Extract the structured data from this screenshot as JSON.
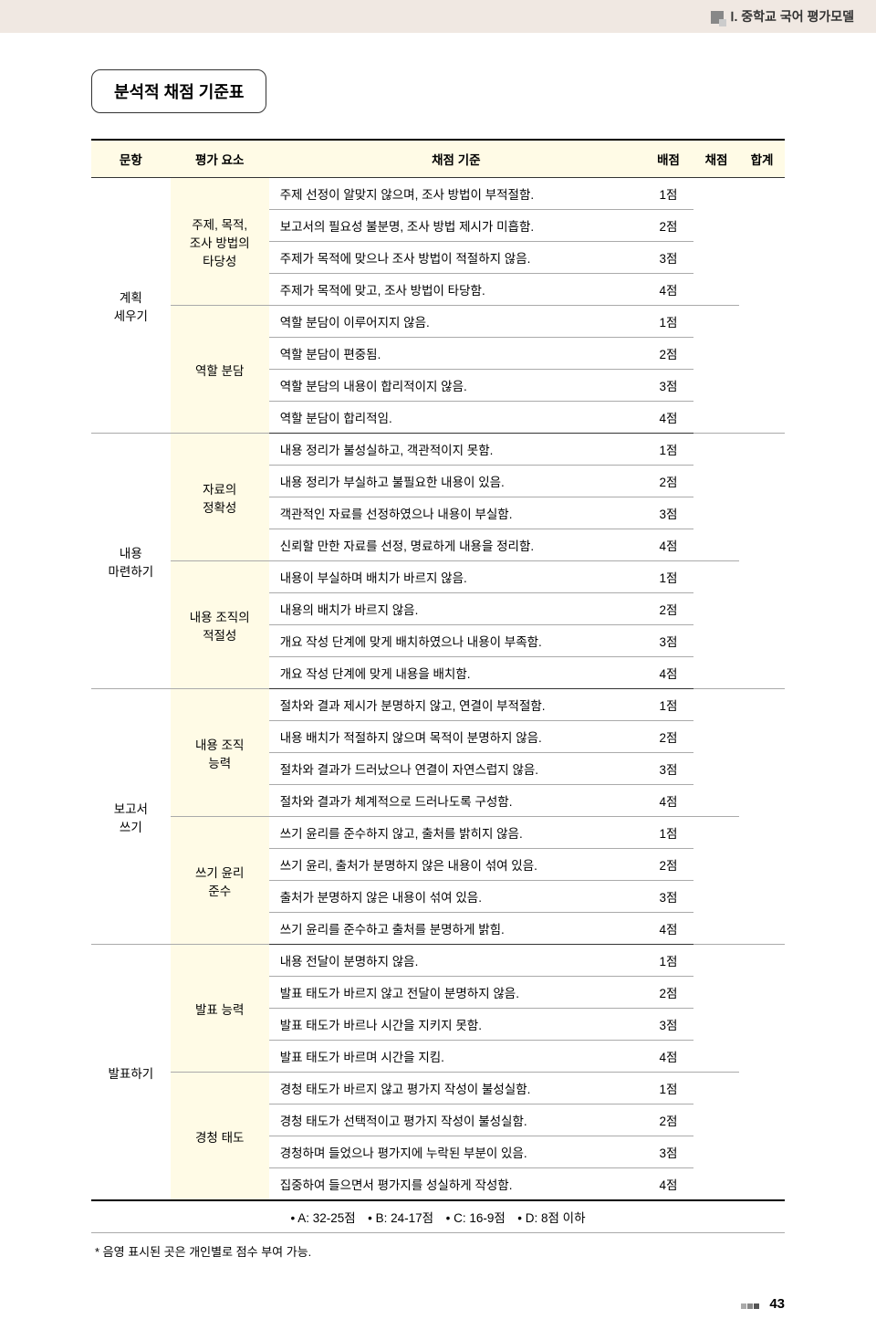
{
  "header": {
    "text": "Ⅰ. 중학교 국어 평가모델"
  },
  "title": "분석적 채점 기준표",
  "columns": {
    "c1": "문항",
    "c2": "평가 요소",
    "c3": "채점 기준",
    "c4": "배점",
    "c5": "채점",
    "c6": "합계"
  },
  "table": [
    {
      "category": "계획\n세우기",
      "blocks": [
        {
          "element": "주제, 목적,\n조사 방법의\n타당성",
          "rows": [
            {
              "criterion": "주제 선정이 알맞지 않으며, 조사 방법이 부적절함.",
              "score": "1점"
            },
            {
              "criterion": "보고서의 필요성 불분명, 조사 방법 제시가 미흡함.",
              "score": "2점"
            },
            {
              "criterion": "주제가 목적에 맞으나 조사 방법이 적절하지 않음.",
              "score": "3점"
            },
            {
              "criterion": "주제가 목적에 맞고, 조사 방법이 타당함.",
              "score": "4점"
            }
          ]
        },
        {
          "element": "역할 분담",
          "rows": [
            {
              "criterion": "역할 분담이 이루어지지 않음.",
              "score": "1점"
            },
            {
              "criterion": "역할 분담이 편중됨.",
              "score": "2점"
            },
            {
              "criterion": "역할 분담의 내용이 합리적이지 않음.",
              "score": "3점"
            },
            {
              "criterion": "역할 분담이 합리적임.",
              "score": "4점"
            }
          ]
        }
      ]
    },
    {
      "category": "내용\n마련하기",
      "blocks": [
        {
          "element": "자료의\n정확성",
          "rows": [
            {
              "criterion": "내용 정리가 불성실하고, 객관적이지 못함.",
              "score": "1점"
            },
            {
              "criterion": "내용 정리가 부실하고 불필요한 내용이 있음.",
              "score": "2점"
            },
            {
              "criterion": "객관적인 자료를 선정하였으나 내용이 부실함.",
              "score": "3점"
            },
            {
              "criterion": "신뢰할 만한 자료를 선정, 명료하게 내용을 정리함.",
              "score": "4점"
            }
          ]
        },
        {
          "element": "내용 조직의\n적절성",
          "rows": [
            {
              "criterion": "내용이 부실하며 배치가 바르지 않음.",
              "score": "1점"
            },
            {
              "criterion": "내용의 배치가 바르지 않음.",
              "score": "2점"
            },
            {
              "criterion": "개요 작성 단계에 맞게 배치하였으나 내용이 부족함.",
              "score": "3점"
            },
            {
              "criterion": "개요 작성 단계에 맞게 내용을 배치함.",
              "score": "4점"
            }
          ]
        }
      ]
    },
    {
      "category": "보고서\n쓰기",
      "blocks": [
        {
          "element": "내용 조직\n능력",
          "rows": [
            {
              "criterion": "절차와 결과 제시가 분명하지 않고, 연결이 부적절함.",
              "score": "1점"
            },
            {
              "criterion": "내용 배치가 적절하지 않으며 목적이 분명하지 않음.",
              "score": "2점"
            },
            {
              "criterion": "절차와 결과가 드러났으나 연결이 자연스럽지 않음.",
              "score": "3점"
            },
            {
              "criterion": "절차와 결과가 체계적으로 드러나도록 구성함.",
              "score": "4점"
            }
          ]
        },
        {
          "element": "쓰기 윤리\n준수",
          "rows": [
            {
              "criterion": "쓰기 윤리를 준수하지 않고, 출처를 밝히지 않음.",
              "score": "1점"
            },
            {
              "criterion": "쓰기 윤리, 출처가 분명하지 않은 내용이 섞여 있음.",
              "score": "2점"
            },
            {
              "criterion": "출처가 분명하지 않은 내용이 섞여 있음.",
              "score": "3점"
            },
            {
              "criterion": "쓰기 윤리를 준수하고 출처를 분명하게 밝힘.",
              "score": "4점"
            }
          ]
        }
      ]
    },
    {
      "category": "발표하기",
      "blocks": [
        {
          "element": "발표 능력",
          "rows": [
            {
              "criterion": "내용 전달이 분명하지 않음.",
              "score": "1점"
            },
            {
              "criterion": "발표 태도가 바르지 않고 전달이 분명하지 않음.",
              "score": "2점"
            },
            {
              "criterion": "발표 태도가 바르나 시간을 지키지 못함.",
              "score": "3점"
            },
            {
              "criterion": "발표 태도가 바르며 시간을 지킴.",
              "score": "4점"
            }
          ]
        },
        {
          "element": "경청 태도",
          "rows": [
            {
              "criterion": "경청 태도가 바르지 않고 평가지 작성이 불성실함.",
              "score": "1점"
            },
            {
              "criterion": "경청 태도가 선택적이고 평가지 작성이 불성실함.",
              "score": "2점"
            },
            {
              "criterion": "경청하며 들었으나 평가지에 누락된 부분이 있음.",
              "score": "3점"
            },
            {
              "criterion": "집중하여 들으면서 평가지를 성실하게 작성함.",
              "score": "4점"
            }
          ]
        }
      ]
    }
  ],
  "legend": "• A: 32-25점　• B: 24-17점　• C: 16-9점　• D: 8점 이하",
  "footnote": "* 음영 표시된 곳은 개인별로 점수 부여 가능.",
  "page_number": "43"
}
